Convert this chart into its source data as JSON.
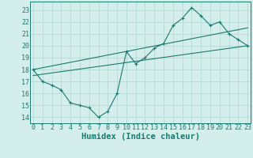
{
  "main_x": [
    0,
    1,
    2,
    3,
    4,
    5,
    6,
    7,
    8,
    9,
    10,
    11,
    12,
    13,
    14,
    15,
    16,
    17,
    18,
    19,
    20,
    21,
    22,
    23
  ],
  "main_y": [
    18,
    17,
    16.7,
    16.3,
    15.2,
    15.0,
    14.8,
    14.0,
    14.5,
    16.0,
    19.5,
    18.5,
    19.0,
    19.8,
    20.2,
    21.7,
    22.3,
    23.2,
    22.5,
    21.7,
    22.0,
    21.0,
    20.5,
    20.0
  ],
  "trend1_x": [
    0,
    23
  ],
  "trend1_y": [
    17.5,
    20.0
  ],
  "trend2_x": [
    0,
    23
  ],
  "trend2_y": [
    18.0,
    21.5
  ],
  "line_color": "#1a7a6e",
  "bg_color": "#d4eeec",
  "grid_color": "#b8dbd8",
  "xlabel": "Humidex (Indice chaleur)",
  "yticks": [
    14,
    15,
    16,
    17,
    18,
    19,
    20,
    21,
    22,
    23
  ],
  "xticks": [
    0,
    1,
    2,
    3,
    4,
    5,
    6,
    7,
    8,
    9,
    10,
    11,
    12,
    13,
    14,
    15,
    16,
    17,
    18,
    19,
    20,
    21,
    22,
    23
  ],
  "xlim": [
    -0.3,
    23.3
  ],
  "ylim": [
    13.5,
    23.7
  ],
  "xlabel_fontsize": 7.5,
  "tick_fontsize": 6.0
}
